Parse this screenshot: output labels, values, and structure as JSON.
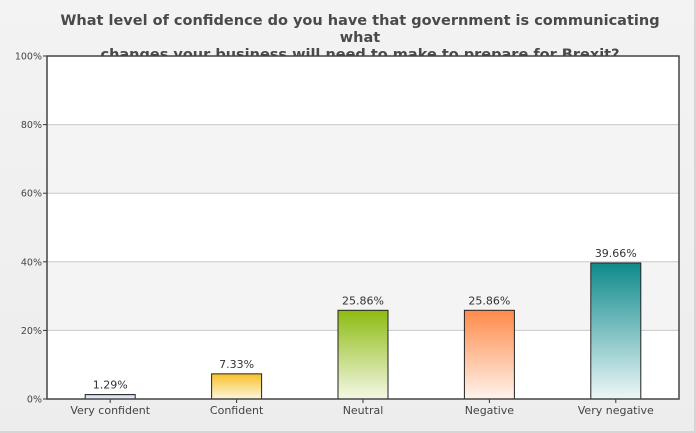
{
  "chart_data": {
    "type": "bar",
    "title_lines": [
      "What level of confidence do you have that government is communicating what",
      "changes your business will need to make to prepare for Brexit?"
    ],
    "categories": [
      "Very confident",
      "Confident",
      "Neutral",
      "Negative",
      "Very negative"
    ],
    "values": [
      1.29,
      7.33,
      25.86,
      25.86,
      39.66
    ],
    "data_labels": [
      "1.29%",
      "7.33%",
      "25.86%",
      "25.86%",
      "39.66%"
    ],
    "ylim": [
      0,
      100
    ],
    "yticks": [
      0,
      20,
      40,
      60,
      80,
      100
    ],
    "ytick_labels": [
      "0%",
      "20%",
      "40%",
      "60%",
      "80%",
      "100%"
    ],
    "grid": true,
    "bar_colors": [
      [
        "#bcd3ec",
        "#f5f8fc"
      ],
      [
        "#f7c12a",
        "#fdf6dc"
      ],
      [
        "#8dbb12",
        "#f4f8e6"
      ],
      [
        "#ff8a4a",
        "#fff3ec"
      ],
      [
        "#0e8a8c",
        "#edf7f7"
      ]
    ]
  }
}
